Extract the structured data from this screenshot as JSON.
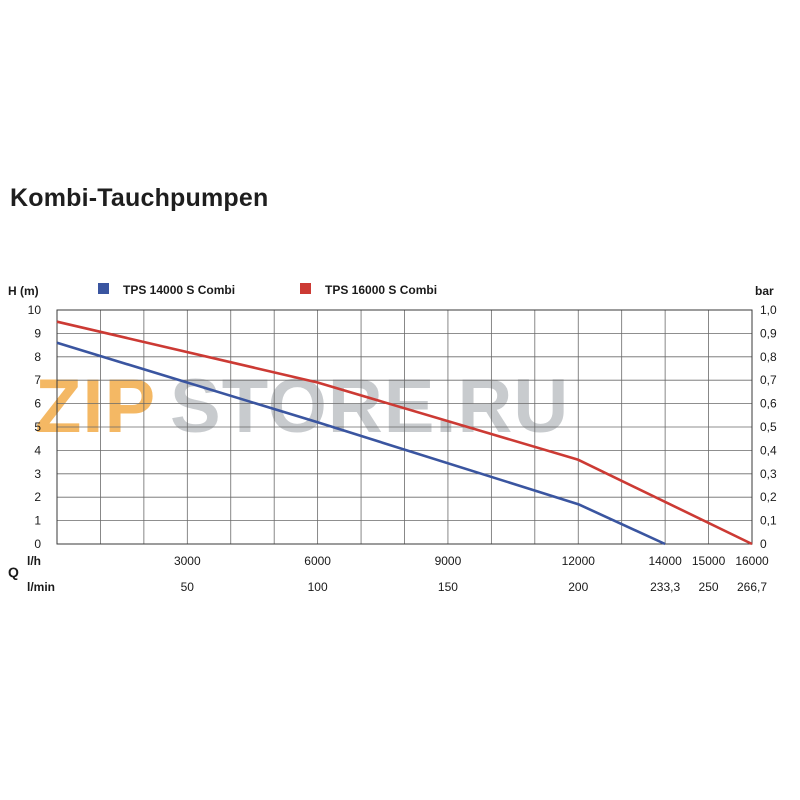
{
  "title": "Kombi-Tauchpumpen",
  "watermark": {
    "part1": "ZIP",
    "part2": "STORE.RU",
    "color1": "#f0a030",
    "color2": "#9aa0a6"
  },
  "chart_data": {
    "type": "line",
    "title": "Kombi-Tauchpumpen",
    "y_left_label": "H (m)",
    "y_right_label": "bar",
    "x_axis_letter": "Q",
    "x_unit_lh": "l/h",
    "x_unit_lmin": "l/min",
    "ylim": [
      0,
      10
    ],
    "y_left_ticks": [
      "0",
      "1",
      "2",
      "3",
      "4",
      "5",
      "6",
      "7",
      "8",
      "9",
      "10"
    ],
    "y_right_ticks": [
      "0",
      "0,1",
      "0,2",
      "0,3",
      "0,4",
      "0,5",
      "0,6",
      "0,7",
      "0,8",
      "0,9",
      "1,0"
    ],
    "x_ticks_lh": [
      {
        "pos": 3000,
        "label": "3000"
      },
      {
        "pos": 6000,
        "label": "6000"
      },
      {
        "pos": 9000,
        "label": "9000"
      },
      {
        "pos": 12000,
        "label": "12000"
      },
      {
        "pos": 14000,
        "label": "14000"
      },
      {
        "pos": 15000,
        "label": "15000"
      },
      {
        "pos": 16000,
        "label": "16000"
      }
    ],
    "x_ticks_lmin": [
      {
        "pos": 3000,
        "label": "50"
      },
      {
        "pos": 6000,
        "label": "100"
      },
      {
        "pos": 9000,
        "label": "150"
      },
      {
        "pos": 12000,
        "label": "200"
      },
      {
        "pos": 14000,
        "label": "233,3"
      },
      {
        "pos": 15000,
        "label": "250"
      },
      {
        "pos": 16000,
        "label": "266,7"
      }
    ],
    "grid": true,
    "legend_position": "top",
    "series": [
      {
        "name": "TPS 14000 S Combi",
        "color": "#3a55a0",
        "points": [
          [
            0,
            8.6
          ],
          [
            6000,
            5.2
          ],
          [
            12000,
            1.7
          ],
          [
            14000,
            0
          ]
        ]
      },
      {
        "name": "TPS 16000 S Combi",
        "color": "#cc3a34",
        "points": [
          [
            0,
            9.5
          ],
          [
            6000,
            6.9
          ],
          [
            12000,
            3.6
          ],
          [
            16000,
            0
          ]
        ]
      }
    ]
  }
}
